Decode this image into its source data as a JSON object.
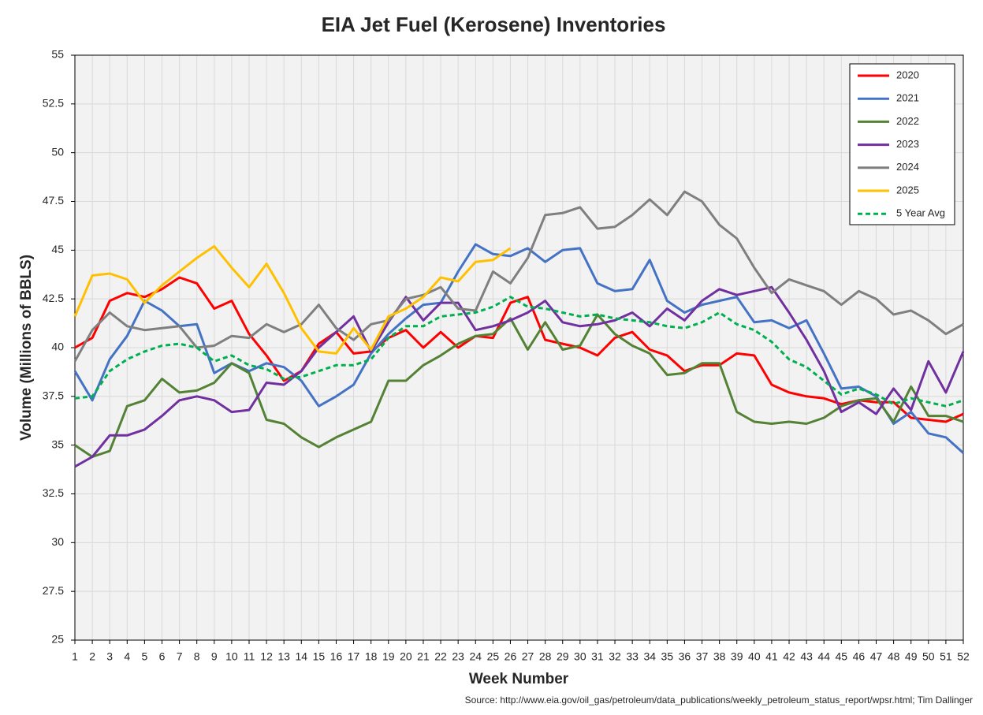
{
  "chart_data": {
    "type": "line",
    "title": "EIA Jet Fuel (Kerosene) Inventories",
    "x_label": "Week Number",
    "y_label": "Volume (Millions of BBLS)",
    "source": "Source: http://www.eia.gov/oil_gas/petroleum/data_publications/weekly_petroleum_status_report/wpsr.html; Tim Dallinger",
    "x": [
      1,
      2,
      3,
      4,
      5,
      6,
      7,
      8,
      9,
      10,
      11,
      12,
      13,
      14,
      15,
      16,
      17,
      18,
      19,
      20,
      21,
      22,
      23,
      24,
      25,
      26,
      27,
      28,
      29,
      30,
      31,
      32,
      33,
      34,
      35,
      36,
      37,
      38,
      39,
      40,
      41,
      42,
      43,
      44,
      45,
      46,
      47,
      48,
      49,
      50,
      51,
      52
    ],
    "xlim": [
      1,
      52
    ],
    "xticks": [
      1,
      2,
      3,
      4,
      5,
      6,
      7,
      8,
      9,
      10,
      11,
      12,
      13,
      14,
      15,
      16,
      17,
      18,
      19,
      20,
      21,
      22,
      23,
      24,
      25,
      26,
      27,
      28,
      29,
      30,
      31,
      32,
      33,
      34,
      35,
      36,
      37,
      38,
      39,
      40,
      41,
      42,
      43,
      44,
      45,
      46,
      47,
      48,
      49,
      50,
      51,
      52
    ],
    "ylim": [
      25,
      55
    ],
    "yticks": [
      25,
      27.5,
      30,
      32.5,
      35,
      37.5,
      40,
      42.5,
      45,
      47.5,
      50,
      52.5,
      55
    ],
    "grid": true,
    "legend": "top-right",
    "series": [
      {
        "name": "2020",
        "color": "#ff0000",
        "values": [
          40,
          40.5,
          42.4,
          42.8,
          42.6,
          43,
          43.6,
          43.3,
          42,
          42.4,
          40.7,
          39.6,
          38.3,
          38.8,
          40.2,
          40.8,
          39.7,
          39.8,
          40.5,
          40.9,
          40,
          40.8,
          40,
          40.6,
          40.5,
          42.3,
          42.6,
          40.4,
          40.2,
          40,
          39.6,
          40.5,
          40.8,
          39.9,
          39.6,
          38.8,
          39.1,
          39.1,
          39.7,
          39.6,
          38.1,
          37.7,
          37.5,
          37.4,
          37.1,
          37.3,
          37.2,
          37.2,
          36.4,
          36.3,
          36.2,
          36.6
        ]
      },
      {
        "name": "2021",
        "color": "#4472c4",
        "values": [
          38.8,
          37.3,
          39.4,
          40.6,
          42.4,
          41.9,
          41.1,
          41.2,
          38.7,
          39.2,
          38.8,
          39.2,
          39,
          38.3,
          37,
          37.5,
          38.1,
          39.7,
          40.7,
          41.5,
          42.2,
          42.3,
          43.9,
          45.3,
          44.8,
          44.7,
          45.1,
          44.4,
          45,
          45.1,
          43.3,
          42.9,
          43,
          44.5,
          42.4,
          41.8,
          42.2,
          42.4,
          42.6,
          41.3,
          41.4,
          41,
          41.4,
          39.7,
          37.9,
          38,
          37.5,
          36.1,
          36.7,
          35.6,
          35.4,
          34.6
        ]
      },
      {
        "name": "2022",
        "color": "#548235",
        "values": [
          35,
          34.4,
          34.7,
          37,
          37.3,
          38.4,
          37.7,
          37.8,
          38.2,
          39.2,
          38.7,
          36.3,
          36.1,
          35.4,
          34.9,
          35.4,
          35.8,
          36.2,
          38.3,
          38.3,
          39.1,
          39.6,
          40.2,
          40.6,
          40.7,
          41.5,
          39.9,
          41.3,
          39.9,
          40.1,
          41.7,
          40.7,
          40.1,
          39.7,
          38.6,
          38.7,
          39.2,
          39.2,
          36.7,
          36.2,
          36.1,
          36.2,
          36.1,
          36.4,
          37,
          37.3,
          37.4,
          36.2,
          38,
          36.5,
          36.5,
          36.2
        ]
      },
      {
        "name": "2023",
        "color": "#7030a0",
        "values": [
          33.9,
          34.4,
          35.5,
          35.5,
          35.8,
          36.5,
          37.3,
          37.5,
          37.3,
          36.7,
          36.8,
          38.2,
          38.1,
          38.8,
          40,
          40.8,
          41.6,
          39.8,
          41.3,
          42.6,
          41.4,
          42.3,
          42.3,
          40.9,
          41.1,
          41.4,
          41.8,
          42.4,
          41.3,
          41.1,
          41.2,
          41.4,
          41.8,
          41.1,
          42,
          41.4,
          42.4,
          43,
          42.7,
          42.9,
          43.1,
          41.8,
          40.4,
          38.8,
          36.7,
          37.2,
          36.6,
          37.9,
          36.8,
          39.3,
          37.7,
          39.8
        ]
      },
      {
        "name": "2024",
        "color": "#7f7f7f",
        "values": [
          39.3,
          40.9,
          41.8,
          41.1,
          40.9,
          41,
          41.1,
          40,
          40.1,
          40.6,
          40.5,
          41.2,
          40.8,
          41.2,
          42.2,
          41,
          40.4,
          41.2,
          41.4,
          42.5,
          42.7,
          43.1,
          42,
          41.9,
          43.9,
          43.3,
          44.6,
          46.8,
          46.9,
          47.2,
          46.1,
          46.2,
          46.8,
          47.6,
          46.8,
          48,
          47.5,
          46.3,
          45.6,
          44.1,
          42.8,
          43.5,
          43.2,
          42.9,
          42.2,
          42.9,
          42.5,
          41.7,
          41.9,
          41.4,
          40.7,
          41.2
        ]
      },
      {
        "name": "2025",
        "color": "#ffc000",
        "values": [
          41.6,
          43.7,
          43.8,
          43.5,
          42.3,
          43.2,
          43.9,
          44.6,
          45.2,
          44.1,
          43.1,
          44.3,
          42.8,
          41,
          39.8,
          39.7,
          41,
          39.9,
          41.6,
          42,
          42.6,
          43.6,
          43.4,
          44.4,
          44.5,
          45.1,
          null,
          null,
          null,
          null,
          null,
          null,
          null,
          null,
          null,
          null,
          null,
          null,
          null,
          null,
          null,
          null,
          null,
          null,
          null,
          null,
          null,
          null,
          null,
          null,
          null,
          null
        ]
      },
      {
        "name": "5 Year Avg",
        "color": "#00b050",
        "dashed": true,
        "values": [
          37.4,
          37.5,
          38.8,
          39.4,
          39.8,
          40.1,
          40.2,
          40,
          39.3,
          39.6,
          39.1,
          38.9,
          38.4,
          38.5,
          38.8,
          39.1,
          39.1,
          39.4,
          40.5,
          41.1,
          41.1,
          41.6,
          41.7,
          41.8,
          42.1,
          42.6,
          42.1,
          42,
          41.8,
          41.6,
          41.7,
          41.5,
          41.4,
          41.3,
          41.1,
          41,
          41.3,
          41.8,
          41.2,
          40.9,
          40.3,
          39.4,
          39,
          38.3,
          37.6,
          37.9,
          37.6,
          37.1,
          37.4,
          37.2,
          37,
          37.3
        ]
      }
    ]
  }
}
